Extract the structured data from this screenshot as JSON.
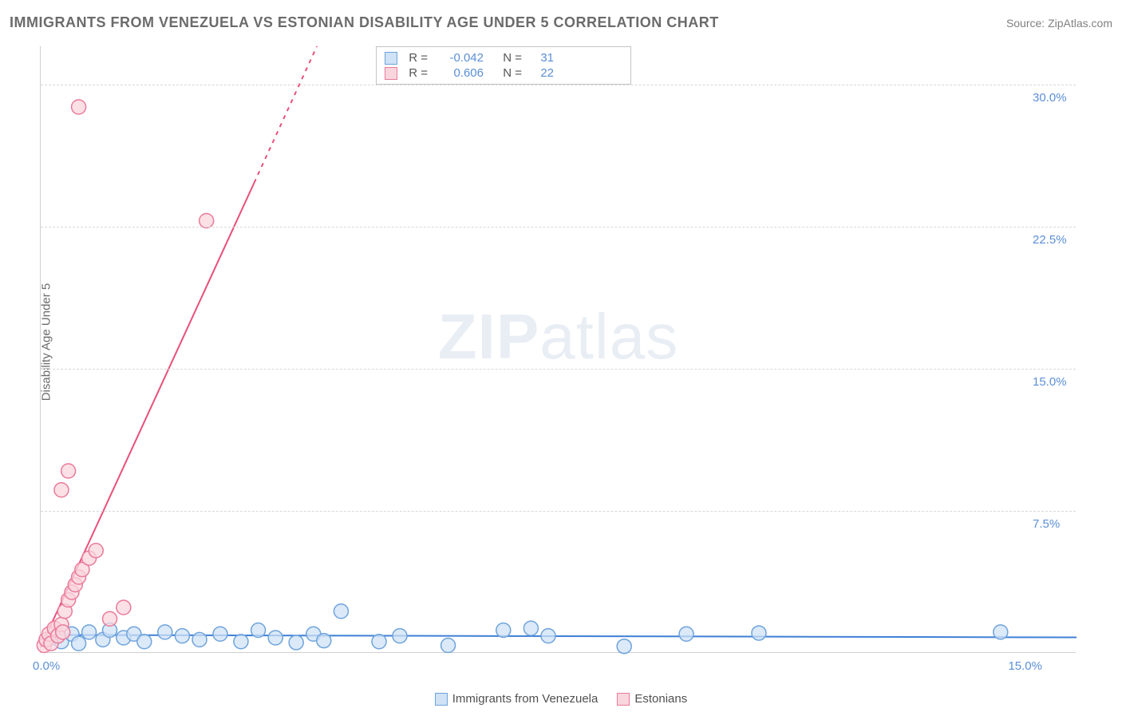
{
  "title": "IMMIGRANTS FROM VENEZUELA VS ESTONIAN DISABILITY AGE UNDER 5 CORRELATION CHART",
  "source": "Source: ZipAtlas.com",
  "ylabel": "Disability Age Under 5",
  "watermark_bold": "ZIP",
  "watermark_light": "atlas",
  "chart": {
    "type": "scatter",
    "xlim": [
      0,
      15
    ],
    "ylim": [
      0,
      32
    ],
    "xtick_labels": [
      "0.0%",
      "15.0%"
    ],
    "yticks": [
      7.5,
      15.0,
      22.5,
      30.0
    ],
    "ytick_labels": [
      "7.5%",
      "15.0%",
      "22.5%",
      "30.0%"
    ],
    "grid_color": "#d8d8d8",
    "tick_color_x": "#5b8fd6",
    "tick_color_y": "#5b8fd6",
    "background": "#ffffff",
    "series": [
      {
        "name": "Immigrants from Venezuela",
        "color_fill": "#cfe2f6",
        "color_stroke": "#6ea3dc",
        "marker_radius": 9,
        "trend": {
          "x1": 0.05,
          "y1": 0.95,
          "x2": 15.0,
          "y2": 0.82,
          "color": "#3f7fd6",
          "width": 2,
          "dash": ""
        },
        "stats": {
          "R": "-0.042",
          "N": "31"
        },
        "points": [
          [
            0.2,
            0.8
          ],
          [
            0.3,
            0.6
          ],
          [
            0.45,
            1.0
          ],
          [
            0.55,
            0.5
          ],
          [
            0.7,
            1.1
          ],
          [
            0.9,
            0.7
          ],
          [
            1.0,
            1.2
          ],
          [
            1.2,
            0.8
          ],
          [
            1.35,
            1.0
          ],
          [
            1.5,
            0.6
          ],
          [
            1.8,
            1.1
          ],
          [
            2.05,
            0.9
          ],
          [
            2.3,
            0.7
          ],
          [
            2.6,
            1.0
          ],
          [
            2.9,
            0.6
          ],
          [
            3.15,
            1.2
          ],
          [
            3.4,
            0.8
          ],
          [
            3.7,
            0.55
          ],
          [
            3.95,
            1.0
          ],
          [
            4.1,
            0.65
          ],
          [
            4.35,
            2.2
          ],
          [
            4.9,
            0.6
          ],
          [
            5.2,
            0.9
          ],
          [
            5.9,
            0.4
          ],
          [
            6.7,
            1.2
          ],
          [
            7.1,
            1.3
          ],
          [
            7.35,
            0.9
          ],
          [
            8.45,
            0.35
          ],
          [
            9.35,
            1.0
          ],
          [
            10.4,
            1.05
          ],
          [
            13.9,
            1.1
          ]
        ]
      },
      {
        "name": "Estonians",
        "color_fill": "#f9d6de",
        "color_stroke": "#ea7a99",
        "marker_radius": 9,
        "trend": {
          "x1": 0.0,
          "y1": 0.3,
          "x2": 4.0,
          "y2": 32.0,
          "color": "#e94f79",
          "width": 2,
          "dash": "5,6",
          "solid_until_y": 24.8
        },
        "stats": {
          "R": "0.606",
          "N": "22"
        },
        "points": [
          [
            0.05,
            0.4
          ],
          [
            0.08,
            0.7
          ],
          [
            0.12,
            1.0
          ],
          [
            0.15,
            0.5
          ],
          [
            0.2,
            1.3
          ],
          [
            0.25,
            0.9
          ],
          [
            0.3,
            1.5
          ],
          [
            0.32,
            1.1
          ],
          [
            0.35,
            2.2
          ],
          [
            0.4,
            2.8
          ],
          [
            0.45,
            3.2
          ],
          [
            0.5,
            3.6
          ],
          [
            0.55,
            4.0
          ],
          [
            0.6,
            4.4
          ],
          [
            0.7,
            5.0
          ],
          [
            0.8,
            5.4
          ],
          [
            0.3,
            8.6
          ],
          [
            0.4,
            9.6
          ],
          [
            1.0,
            1.8
          ],
          [
            1.2,
            2.4
          ],
          [
            2.4,
            22.8
          ],
          [
            0.55,
            28.8
          ]
        ]
      }
    ]
  },
  "legend": {
    "bottom": [
      "Immigrants from Venezuela",
      "Estonians"
    ],
    "r_label": "R =",
    "n_label": "N ="
  }
}
